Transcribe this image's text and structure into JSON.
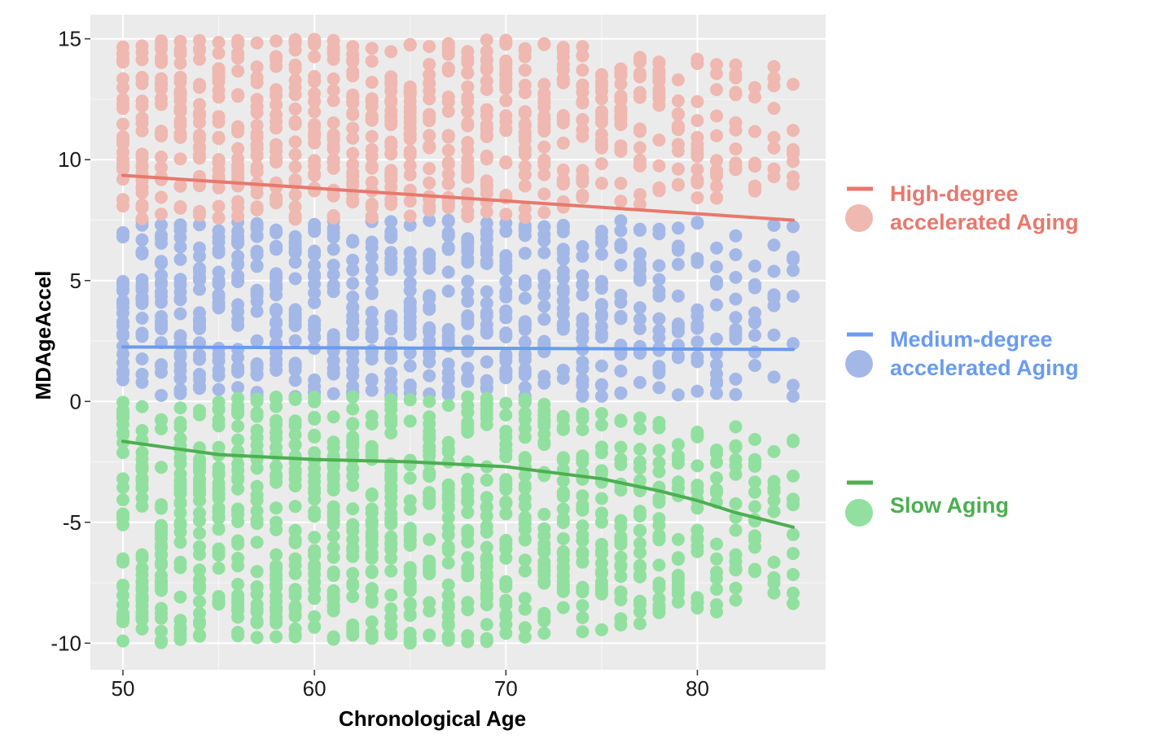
{
  "chart_data": {
    "type": "scatter",
    "title": "",
    "xlabel": "Chronological Age",
    "ylabel": "MDAgeAccel",
    "xlim": [
      48.3,
      86.7
    ],
    "ylim": [
      -11.1,
      16.0
    ],
    "x_ticks": [
      50,
      60,
      70,
      80
    ],
    "y_ticks": [
      15,
      10,
      5,
      0,
      -5,
      -10
    ],
    "x_tick_labels": [
      "50",
      "60",
      "70",
      "80"
    ],
    "y_tick_labels": [
      "15",
      "10",
      "5",
      "0",
      "-5",
      "-10"
    ],
    "grid": true,
    "legend_position": "right",
    "legend_items": [
      {
        "line1": "High-degree",
        "line2": "accelerated Aging",
        "color": "#e8786c",
        "point_color": "#efb8b1"
      },
      {
        "line1": "Medium-degree",
        "line2": "accelerated Aging",
        "color": "#6a9bef",
        "point_color": "#a4b8e8"
      },
      {
        "line1": "Slow Aging",
        "line2": "",
        "color": "#4caf50",
        "point_color": "#92e09f"
      }
    ],
    "series": [
      {
        "name": "High-degree accelerated Aging",
        "color": "#efb8b1",
        "line_color": "#e8786c",
        "y_range": [
          7.5,
          15.0
        ],
        "trend": {
          "x": [
            50,
            85
          ],
          "y": [
            9.35,
            7.5
          ]
        }
      },
      {
        "name": "Medium-degree accelerated Aging",
        "color": "#a4b8e8",
        "line_color": "#6a9bef",
        "y_range": [
          0.2,
          7.5
        ],
        "trend": {
          "x": [
            50,
            85
          ],
          "y": [
            2.25,
            2.15
          ]
        }
      },
      {
        "name": "Slow Aging",
        "color": "#92e09f",
        "line_color": "#4caf50",
        "y_range": [
          -10.0,
          0.2
        ],
        "trend": {
          "x": [
            50,
            55,
            60,
            65,
            70,
            75,
            78,
            80,
            82,
            85
          ],
          "y": [
            -1.65,
            -2.2,
            -2.4,
            -2.5,
            -2.7,
            -3.2,
            -3.7,
            -4.1,
            -4.6,
            -5.2
          ]
        }
      }
    ]
  }
}
